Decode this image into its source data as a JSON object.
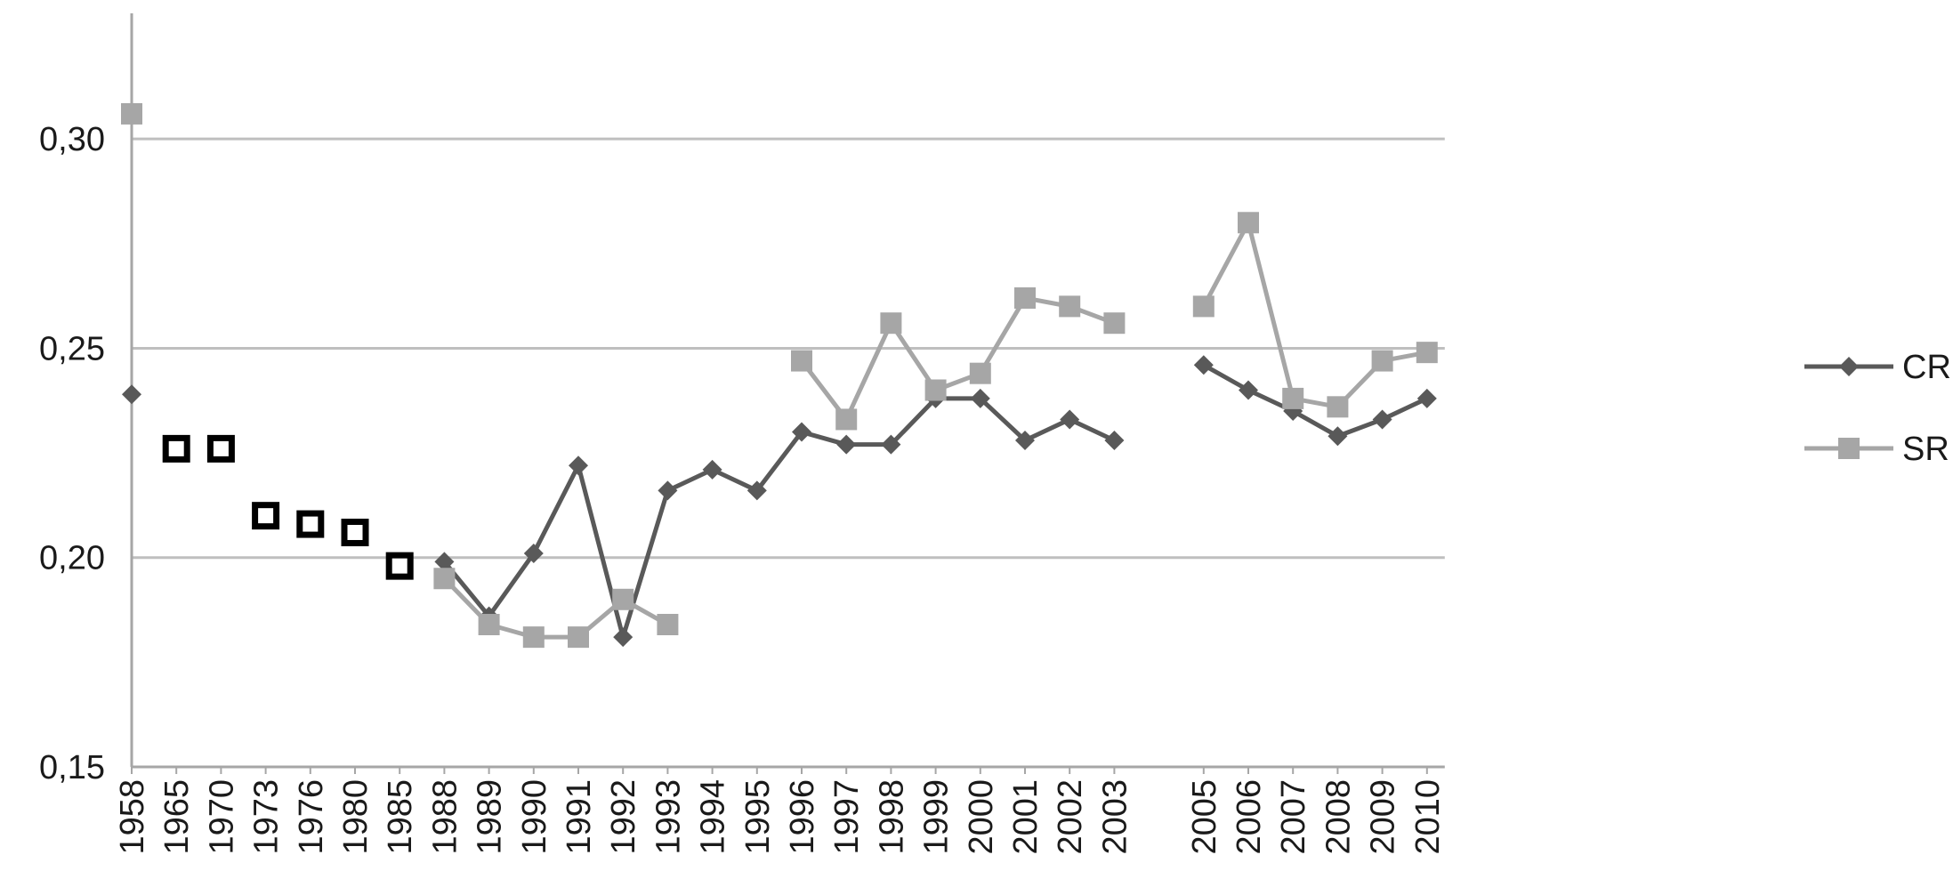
{
  "chart_data": {
    "type": "line",
    "title": "",
    "xlabel": "",
    "ylabel": "",
    "ylim": [
      0.15,
      0.33
    ],
    "yticks": [
      0.15,
      0.2,
      0.25,
      0.3
    ],
    "ytick_labels": [
      "0,15",
      "0,20",
      "0,25",
      "0,30"
    ],
    "grid": "horizontal",
    "legend_position": "right",
    "categories": [
      "1958",
      "1965",
      "1970",
      "1973",
      "1976",
      "1980",
      "1985",
      "1988",
      "1989",
      "1990",
      "1991",
      "1992",
      "1993",
      "1994",
      "1995",
      "1996",
      "1997",
      "1998",
      "1999",
      "2000",
      "2001",
      "2002",
      "2003",
      "",
      "2005",
      "2006",
      "2007",
      "2008",
      "2009",
      "2010"
    ],
    "series": [
      {
        "name": "CR",
        "color": "#595959",
        "marker": "diamond",
        "values": [
          0.239,
          null,
          null,
          null,
          null,
          null,
          null,
          0.199,
          0.186,
          0.201,
          0.222,
          0.181,
          0.216,
          0.221,
          0.216,
          0.23,
          0.227,
          0.227,
          0.238,
          0.238,
          0.228,
          0.233,
          0.228,
          null,
          0.246,
          0.24,
          0.235,
          0.229,
          0.233,
          0.238
        ]
      },
      {
        "name": "SR",
        "color": "#a6a6a6",
        "marker": "square",
        "values": [
          0.306,
          null,
          null,
          null,
          null,
          null,
          null,
          0.195,
          0.184,
          0.181,
          0.181,
          0.19,
          0.184,
          null,
          null,
          0.247,
          0.233,
          0.256,
          0.24,
          0.244,
          0.262,
          0.26,
          0.256,
          null,
          0.26,
          0.28,
          0.238,
          0.236,
          0.247,
          0.249
        ]
      },
      {
        "name": "",
        "color": "#000000",
        "marker": "hollow-square",
        "values": [
          null,
          0.226,
          0.226,
          0.21,
          0.208,
          0.206,
          0.198,
          null,
          null,
          null,
          null,
          null,
          null,
          null,
          null,
          null,
          null,
          null,
          null,
          null,
          null,
          null,
          null,
          null,
          null,
          null,
          null,
          null,
          null,
          null
        ]
      }
    ]
  }
}
